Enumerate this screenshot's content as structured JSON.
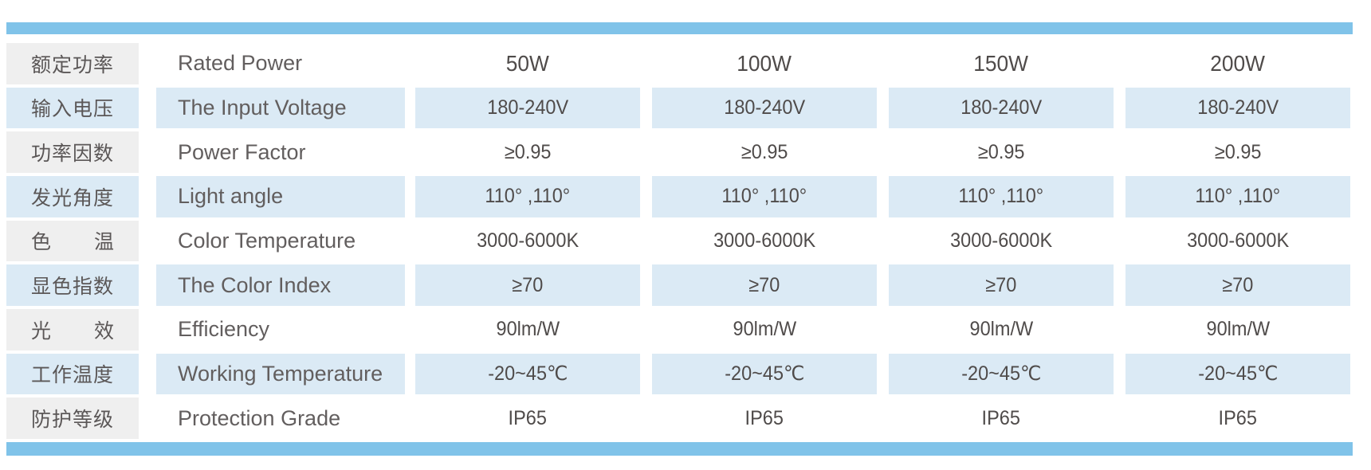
{
  "colors": {
    "divider_bar_blue": "#80c3e9",
    "row_highlight_blue": "#dbeaf5",
    "left_column_grey": "#efefef",
    "label_text_grey": "#5b5757",
    "value_text_grey": "#4f4b4a"
  },
  "table": {
    "rows": [
      {
        "zh": "额定功率",
        "en": "Rated Power",
        "values": [
          "50W",
          "100W",
          "150W",
          "200W"
        ]
      },
      {
        "zh": "输入电压",
        "en": "The Input Voltage",
        "values": [
          "180-240V",
          "180-240V",
          "180-240V",
          "180-240V"
        ]
      },
      {
        "zh": "功率因数",
        "en": "Power Factor",
        "values": [
          "≥0.95",
          "≥0.95",
          "≥0.95",
          "≥0.95"
        ]
      },
      {
        "zh": "发光角度",
        "en": "Light angle",
        "values": [
          "110° ,110°",
          "110° ,110°",
          "110° ,110°",
          "110° ,110°"
        ]
      },
      {
        "zh": "色温",
        "en": "Color Temperature",
        "values": [
          "3000-6000K",
          "3000-6000K",
          "3000-6000K",
          "3000-6000K"
        ]
      },
      {
        "zh": "显色指数",
        "en": "The Color Index",
        "values": [
          "≥70",
          "≥70",
          "≥70",
          "≥70"
        ]
      },
      {
        "zh": "光效",
        "en": "Efficiency",
        "values": [
          "90lm/W",
          "90lm/W",
          "90lm/W",
          "90lm/W"
        ]
      },
      {
        "zh": "工作温度",
        "en": "Working Temperature",
        "values": [
          "-20~45℃",
          "-20~45℃",
          "-20~45℃",
          "-20~45℃"
        ]
      },
      {
        "zh": "防护等级",
        "en": "Protection Grade",
        "values": [
          "IP65",
          "IP65",
          "IP65",
          "IP65"
        ]
      }
    ]
  }
}
